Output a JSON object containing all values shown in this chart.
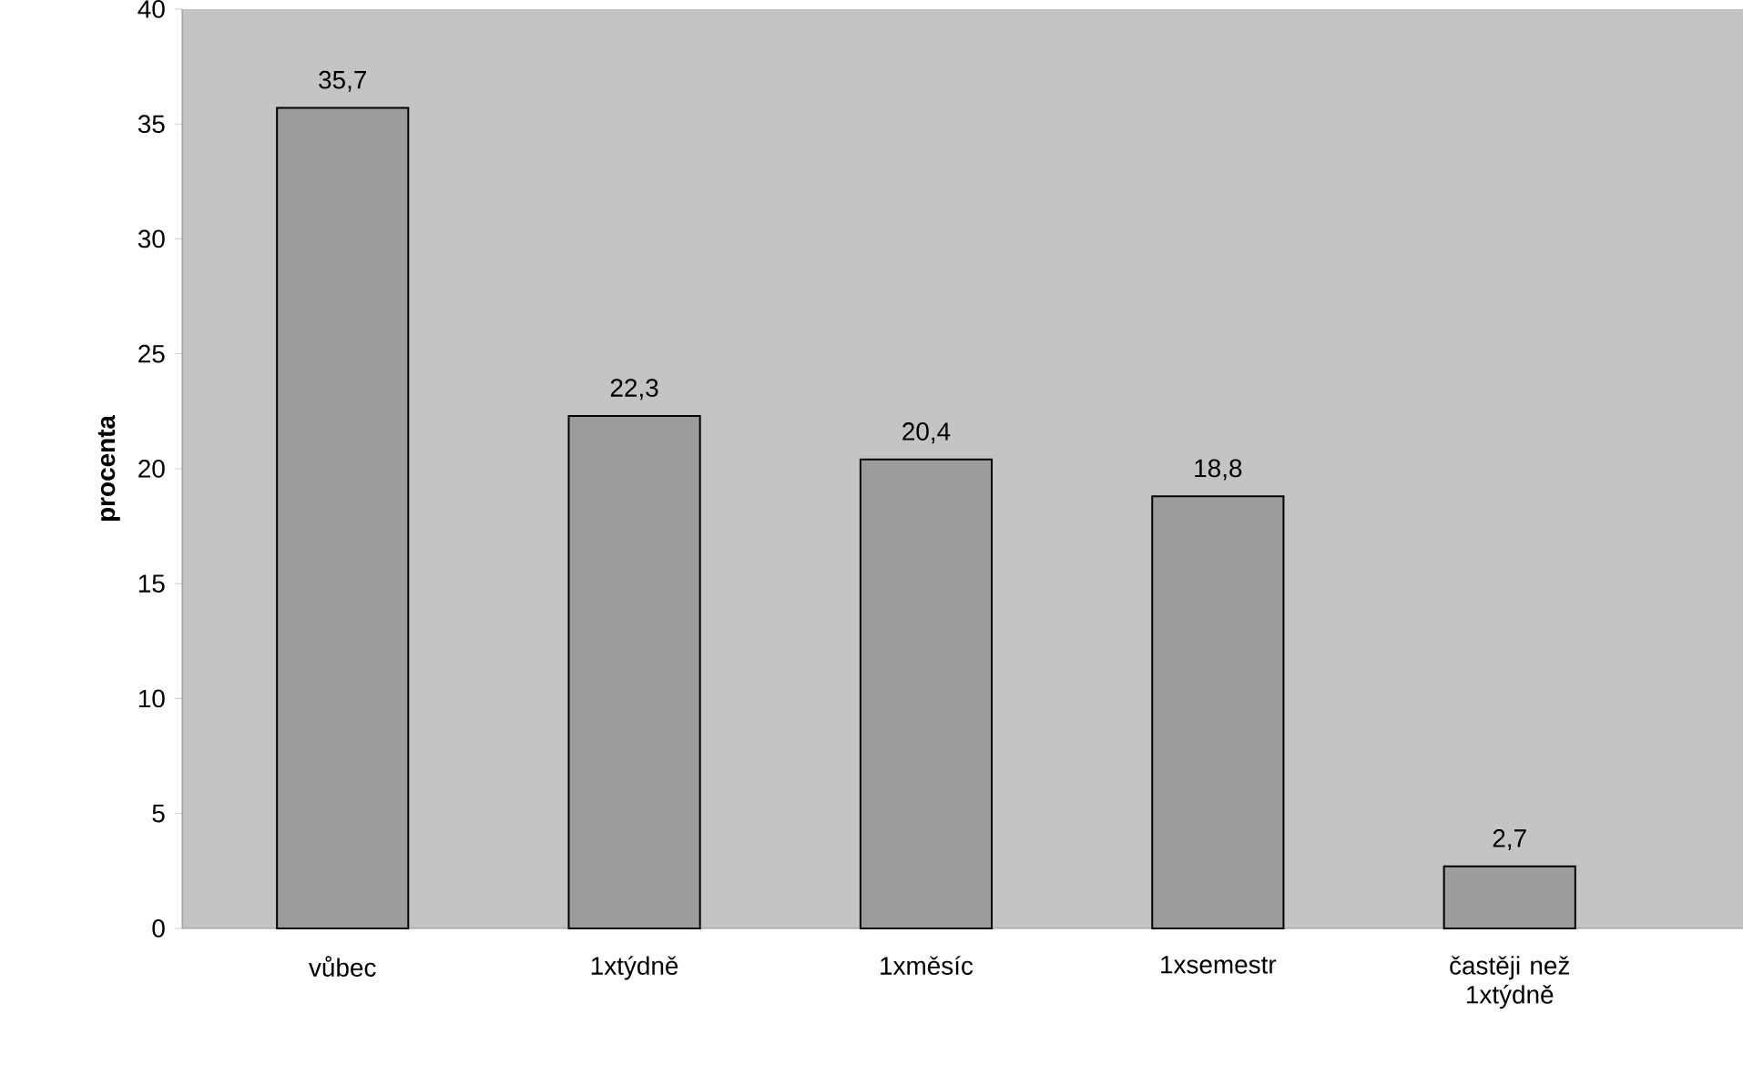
{
  "chart_data": {
    "type": "bar",
    "ylabel": "procenta",
    "categories": [
      "vůbec",
      "1xtýdně",
      "1xměsíc",
      "1xsemestr",
      "častěji než 1xtýdně"
    ],
    "values": [
      35.7,
      22.3,
      20.4,
      18.8,
      2.7
    ],
    "value_labels": [
      "35,7",
      "22,3",
      "20,4",
      "18,8",
      "2,7"
    ],
    "color": "#9c9c9c",
    "ylim": [
      0,
      40
    ],
    "yticks": [
      0,
      5,
      10,
      15,
      20,
      25,
      30,
      35,
      40
    ],
    "grid": false
  }
}
